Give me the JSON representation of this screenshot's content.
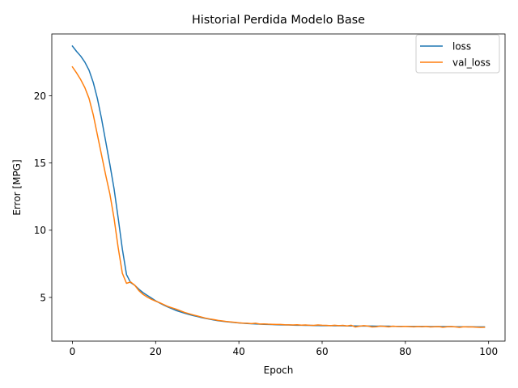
{
  "chart_data": {
    "type": "line",
    "title": "Historial Perdida Modelo Base",
    "xlabel": "Epoch",
    "ylabel": "Error [MPG]",
    "xlim": [
      -4.95,
      103.95
    ],
    "ylim": [
      1.75,
      24.6
    ],
    "xticks": [
      0,
      20,
      40,
      60,
      80,
      100
    ],
    "yticks": [
      5,
      10,
      15,
      20
    ],
    "grid": false,
    "legend_position": "top-right",
    "series": [
      {
        "name": "loss",
        "color": "#1f77b4",
        "x": [
          0,
          1,
          2,
          3,
          4,
          5,
          6,
          7,
          8,
          9,
          10,
          11,
          12,
          13,
          14,
          15,
          16,
          17,
          18,
          19,
          20,
          21,
          22,
          23,
          24,
          25,
          26,
          27,
          28,
          29,
          30,
          31,
          32,
          33,
          34,
          35,
          36,
          37,
          38,
          39,
          40,
          41,
          42,
          43,
          44,
          45,
          46,
          47,
          48,
          49,
          50,
          51,
          52,
          53,
          54,
          55,
          56,
          57,
          58,
          59,
          60,
          61,
          62,
          63,
          64,
          65,
          66,
          67,
          68,
          69,
          70,
          71,
          72,
          73,
          74,
          75,
          76,
          77,
          78,
          79,
          80,
          81,
          82,
          83,
          84,
          85,
          86,
          87,
          88,
          89,
          90,
          91,
          92,
          93,
          94,
          95,
          96,
          97,
          98,
          99
        ],
        "values": [
          23.7,
          23.3,
          22.95,
          22.5,
          21.9,
          21.0,
          19.8,
          18.3,
          16.6,
          14.9,
          13.1,
          10.9,
          8.6,
          6.7,
          6.1,
          5.9,
          5.6,
          5.35,
          5.15,
          4.95,
          4.75,
          4.58,
          4.42,
          4.28,
          4.15,
          4.02,
          3.92,
          3.82,
          3.73,
          3.65,
          3.58,
          3.5,
          3.44,
          3.38,
          3.32,
          3.27,
          3.23,
          3.19,
          3.16,
          3.13,
          3.1,
          3.08,
          3.06,
          3.04,
          3.03,
          3.01,
          3.0,
          2.99,
          2.98,
          2.97,
          2.96,
          2.95,
          2.95,
          2.94,
          2.93,
          2.93,
          2.92,
          2.92,
          2.91,
          2.91,
          2.9,
          2.9,
          2.9,
          2.89,
          2.89,
          2.89,
          2.88,
          2.88,
          2.88,
          2.87,
          2.87,
          2.87,
          2.87,
          2.86,
          2.86,
          2.86,
          2.86,
          2.85,
          2.85,
          2.85,
          2.85,
          2.84,
          2.84,
          2.84,
          2.84,
          2.84,
          2.83,
          2.83,
          2.83,
          2.83,
          2.83,
          2.83,
          2.82,
          2.82,
          2.82,
          2.82,
          2.82,
          2.81,
          2.81,
          2.81
        ]
      },
      {
        "name": "val_loss",
        "color": "#ff7f0e",
        "x": [
          0,
          1,
          2,
          3,
          4,
          5,
          6,
          7,
          8,
          9,
          10,
          11,
          12,
          13,
          14,
          15,
          16,
          17,
          18,
          19,
          20,
          21,
          22,
          23,
          24,
          25,
          26,
          27,
          28,
          29,
          30,
          31,
          32,
          33,
          34,
          35,
          36,
          37,
          38,
          39,
          40,
          41,
          42,
          43,
          44,
          45,
          46,
          47,
          48,
          49,
          50,
          51,
          52,
          53,
          54,
          55,
          56,
          57,
          58,
          59,
          60,
          61,
          62,
          63,
          64,
          65,
          66,
          67,
          68,
          69,
          70,
          71,
          72,
          73,
          74,
          75,
          76,
          77,
          78,
          79,
          80,
          81,
          82,
          83,
          84,
          85,
          86,
          87,
          88,
          89,
          90,
          91,
          92,
          93,
          94,
          95,
          96,
          97,
          98,
          99
        ],
        "values": [
          22.15,
          21.7,
          21.2,
          20.6,
          19.8,
          18.6,
          17.1,
          15.6,
          14.1,
          12.7,
          10.9,
          8.7,
          6.8,
          6.05,
          6.15,
          5.9,
          5.5,
          5.22,
          5.02,
          4.86,
          4.72,
          4.6,
          4.46,
          4.32,
          4.22,
          4.12,
          4.0,
          3.88,
          3.79,
          3.7,
          3.62,
          3.54,
          3.46,
          3.4,
          3.35,
          3.29,
          3.25,
          3.21,
          3.18,
          3.15,
          3.11,
          3.09,
          3.08,
          3.05,
          3.08,
          3.02,
          3.03,
          3.01,
          3.0,
          2.99,
          2.99,
          2.97,
          2.96,
          2.95,
          2.97,
          2.94,
          2.95,
          2.93,
          2.92,
          2.95,
          2.93,
          2.92,
          2.9,
          2.93,
          2.9,
          2.92,
          2.88,
          2.93,
          2.8,
          2.86,
          2.9,
          2.87,
          2.8,
          2.82,
          2.87,
          2.85,
          2.81,
          2.86,
          2.84,
          2.83,
          2.85,
          2.83,
          2.81,
          2.84,
          2.82,
          2.85,
          2.8,
          2.82,
          2.83,
          2.78,
          2.82,
          2.83,
          2.81,
          2.77,
          2.82,
          2.8,
          2.81,
          2.79,
          2.77,
          2.78
        ]
      }
    ]
  }
}
